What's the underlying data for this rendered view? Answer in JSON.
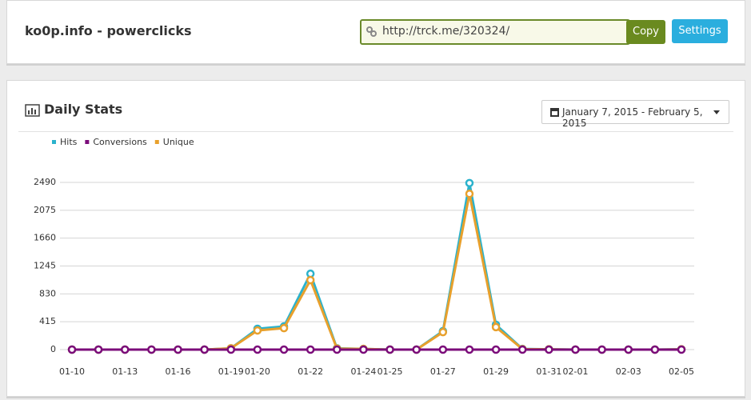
{
  "header": {
    "title": "ko0p.info - powerclicks",
    "url": "http://trck.me/320324/",
    "copy_button": "Copy",
    "settings_button": "Settings"
  },
  "panel": {
    "title": "Daily Stats",
    "date_range": "January 7, 2015 - February 5, 2015"
  },
  "chart_data": {
    "type": "line",
    "categories": [
      "01-10",
      null,
      "01-13",
      null,
      "01-16",
      null,
      "01-19",
      "01-20",
      null,
      "01-22",
      null,
      "01-24",
      "01-25",
      null,
      "01-27",
      null,
      "01-29",
      null,
      "01-31",
      "02-01",
      null,
      "02-03",
      null,
      "02-05"
    ],
    "series": [
      {
        "name": "Hits",
        "color": "#2bb2cc",
        "values": [
          0,
          0,
          0,
          0,
          0,
          0,
          20,
          310,
          345,
          1130,
          20,
          10,
          0,
          0,
          275,
          2480,
          370,
          10,
          5,
          0,
          0,
          0,
          0,
          5
        ]
      },
      {
        "name": "Conversions",
        "color": "#7b0c7a",
        "values": [
          0,
          0,
          0,
          0,
          0,
          0,
          0,
          0,
          0,
          0,
          0,
          0,
          0,
          0,
          0,
          0,
          0,
          0,
          0,
          0,
          0,
          0,
          0,
          0
        ]
      },
      {
        "name": "Unique",
        "color": "#e8a02c",
        "values": [
          0,
          0,
          0,
          0,
          0,
          0,
          20,
          285,
          320,
          1035,
          15,
          10,
          0,
          0,
          260,
          2320,
          335,
          8,
          5,
          0,
          0,
          0,
          0,
          5
        ]
      }
    ],
    "ylim": [
      0,
      2490
    ],
    "yticks": [
      0,
      415,
      830,
      1245,
      1660,
      2075,
      2490
    ],
    "grid": true,
    "legend": "top-left"
  }
}
